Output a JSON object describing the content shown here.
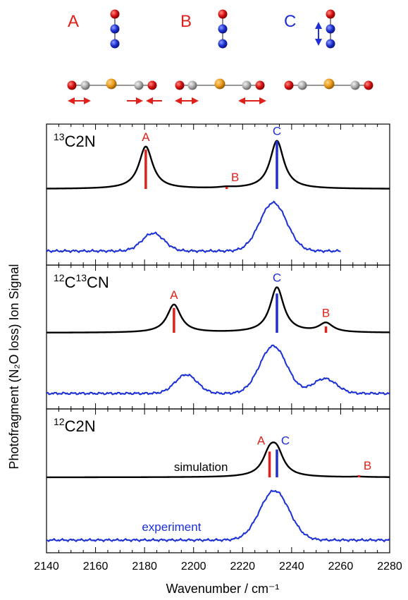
{
  "modes": [
    {
      "label": "A",
      "color": "#e0201b"
    },
    {
      "label": "B",
      "color": "#e0201b"
    },
    {
      "label": "C",
      "color": "#1f2fd1"
    }
  ],
  "colors": {
    "simulation": "#000000",
    "experiment": "#1a2fd6",
    "stick_ab": "#e0201b",
    "stick_c": "#1f2fd1"
  },
  "chart_data": {
    "type": "line",
    "xlabel": "Wavenumber / cm⁻¹",
    "ylabel": "Photofragment (N₂O loss) Ion Signal",
    "xlim": [
      2140,
      2280
    ],
    "xticks": [
      2140,
      2160,
      2180,
      2200,
      2220,
      2240,
      2260,
      2280
    ],
    "grid": false,
    "panels": [
      {
        "label_parts": [
          {
            "sup": "13"
          },
          {
            "text": "C2N"
          }
        ],
        "series_labels": {
          "simulation": "",
          "experiment": ""
        },
        "simulation_peaks": [
          {
            "center": 2180.5,
            "height": 0.88,
            "width": 3.4
          },
          {
            "center": 2213.5,
            "height": 0.02,
            "width": 3.5
          },
          {
            "center": 2234,
            "height": 1.0,
            "width": 3.4
          }
        ],
        "experiment_peaks": [
          {
            "center": 2183.5,
            "height": 0.35,
            "width": 4.5
          },
          {
            "center": 2232.5,
            "height": 0.95,
            "width": 5.5
          }
        ],
        "experiment_xmax": 2260,
        "sticks": [
          {
            "mode": "A",
            "x": 2180.5,
            "intensity": 0.82
          },
          {
            "mode": "B",
            "x": 2213.5,
            "intensity": 0.03
          },
          {
            "mode": "C",
            "x": 2234,
            "intensity": 1.0
          }
        ]
      },
      {
        "label_parts": [
          {
            "sup": "12"
          },
          {
            "text": "C"
          },
          {
            "sup": "13"
          },
          {
            "text": "CN"
          }
        ],
        "series_labels": {
          "simulation": "",
          "experiment": ""
        },
        "simulation_peaks": [
          {
            "center": 2192,
            "height": 0.62,
            "width": 3.4
          },
          {
            "center": 2234,
            "height": 1.0,
            "width": 3.4
          },
          {
            "center": 2254,
            "height": 0.2,
            "width": 3.4
          }
        ],
        "experiment_peaks": [
          {
            "center": 2197,
            "height": 0.38,
            "width": 4.5
          },
          {
            "center": 2232.5,
            "height": 0.96,
            "width": 5.5
          },
          {
            "center": 2253.5,
            "height": 0.3,
            "width": 4.8
          }
        ],
        "experiment_xmax": 2280,
        "sticks": [
          {
            "mode": "A",
            "x": 2192,
            "intensity": 0.55
          },
          {
            "mode": "C",
            "x": 2234,
            "intensity": 0.87
          },
          {
            "mode": "B",
            "x": 2254,
            "intensity": 0.14
          }
        ]
      },
      {
        "label_parts": [
          {
            "sup": "12"
          },
          {
            "text": "C2N"
          }
        ],
        "series_labels": {
          "simulation": "simulation",
          "experiment": "experiment"
        },
        "simulation_peaks": [
          {
            "center": 2231,
            "height": 0.5,
            "width": 3.4
          },
          {
            "center": 2234,
            "height": 0.52,
            "width": 3.4
          },
          {
            "center": 2267.5,
            "height": 0.01,
            "width": 3.5
          }
        ],
        "experiment_peaks": [
          {
            "center": 2233,
            "height": 1.0,
            "width": 6.0
          }
        ],
        "experiment_xmax": 2280,
        "sticks": [
          {
            "mode": "A",
            "x": 2231,
            "intensity": 0.63
          },
          {
            "mode": "C",
            "x": 2234,
            "intensity": 0.68
          },
          {
            "mode": "B",
            "x": 2267.5,
            "intensity": 0.03
          }
        ]
      }
    ]
  }
}
